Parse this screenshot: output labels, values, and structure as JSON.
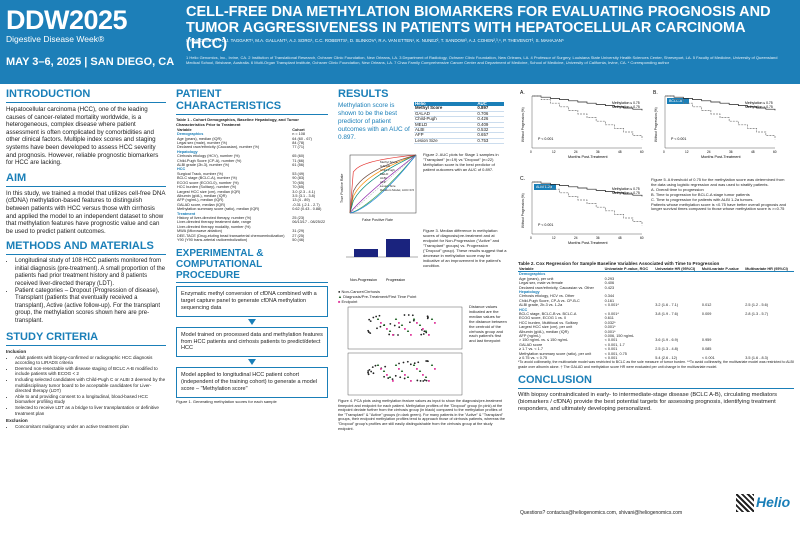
{
  "header": {
    "logo_main": "DDW2025",
    "logo_sub": "Digestive Disease Week®",
    "conference": "MAY 3–6, 2025 | SAN DIEGO, CA",
    "title": "CELL-FREE DNA METHYLATION BIOMARKERS FOR EVALUATING PROGNOSIS AND TUMOR AGGRESSIVENESS IN PATIENTS WITH HEPATOCELLULAR CARCINOMA (HCC)",
    "authors": "I. PINKOVEZKY¹, D.J. TAGGART¹, M.A. GALLANT¹, A.J. SORG¹, C.C. ROBERTS¹, D. SLINKOV¹, R.A. VAN ETTEN¹, K. NUNEZ², T. SANDOW³, A.J. COHEN²,³,⁴, P. THEVENOT², S. MAHAJAN⁵",
    "affiliations": "1 Helio Genomics, Inc., Irvine, CA. 2 Institution of Translational Research, Ochsner Clinic Foundation, New Orleans, LA. 3 Department of Radiology, Ochsner Clinic Foundation, New Orleans, LA. 4 Professor of Surgery, Louisiana State University Health Sciences Center, Shreveport, LA. 5 Faculty of Medicine, University of Queensland Medical School, Brisbane, Australia. 6 Multi-Organ Transplant Institute, Ochsner Clinic Foundation, New Orleans, LA. 7 Chao Family Comprehensive Cancer Center and Department of Medicine, School of Medicine, University of California, Irvine, CA. * Corresponding author"
  },
  "intro": {
    "heading": "INTRODUCTION",
    "text": "Hepatocellular carcinoma (HCC), one of the leading causes of cancer-related mortality worldwide, is a heterogeneous, complex disease where patient assessment is often complicated by comorbidities and other clinical factors. Multiple index scores and staging systems have been developed to assess HCC severity and prognosis. However, reliable prognostic biomarkers for HCC are lacking."
  },
  "aim": {
    "heading": "AIM",
    "text": "In this study, we trained a model that utilizes cell-free DNA (cfDNA) methylation-based features to distinguish between patients with HCC versus those with cirrhosis and applied the model to an independent dataset to show that methylation features have prognostic value and can be used to predict patient outcomes."
  },
  "methods": {
    "heading": "METHODS AND MATERIALS",
    "items": [
      "Longitudinal study of 108 HCC patients monitored from initial diagnosis (pre-treatment). A small proportion of the patients had prior treatment history and 8 patients received liver-directed therapy (LDT).",
      "Patient categories – Dropout (Progression of disease), Transplant (patients that eventually received a transplant), Active (active follow-up). For the transplant group, the methylation scores shown here are pre-transplant."
    ]
  },
  "criteria": {
    "heading": "STUDY CRITERIA",
    "inclusion_label": "Inclusion",
    "inclusion": [
      "Adult patients with biopsy-confirmed or radiographic HCC diagnosis according to LIRADS criteria",
      "Deemed non-resectable with disease staging of BCLC A-B modified to include patients with ECOG < 2",
      "Including selected candidates with Child-Pugh C or ALBI 3 deemed by the multidisciplinary tumor board to be acceptable candidates for Liver-directed therapy (LDT)",
      "Able to and providing consent to a longitudinal, blood-based HCC biomarker profiling study",
      "Selected to receive LDT as a bridge to liver transplantation or definitive treatment plan"
    ],
    "exclusion_label": "Exclusion",
    "exclusion": [
      "Concomitant malignancy under an active treatment plan"
    ]
  },
  "characteristics": {
    "heading": "PATIENT CHARACTERISTICS",
    "table_title": "Table 1 - Cohort Demographics, Baseline Hepatology, and Tumor Characteristics Prior to Treatment",
    "col_variable": "Variable",
    "col_cohort": "Cohort",
    "rows": [
      {
        "s": "Demographics",
        "v": "n = 108"
      },
      {
        "k": "Age (years), median (IQR)",
        "v": "64 (60 - 67)"
      },
      {
        "k": "Legal sex (male), number (%)",
        "v": "84 (78)"
      },
      {
        "k": "Declared race/ethnicity (Caucasian), number (%)",
        "v": "77 (71)"
      },
      {
        "s": "Hepatology",
        "v": ""
      },
      {
        "k": "Cirrhosis etiology (HCV), number (%)",
        "v": "65 (60)"
      },
      {
        "k": "Child-Pugh Score (CP-A), number (%)",
        "v": "71 (66)"
      },
      {
        "k": "ALBI grade (2b-3), number (%)",
        "v": "61 (56)"
      },
      {
        "s": "HCC",
        "v": ""
      },
      {
        "k": "Surgical Track, number (%)",
        "v": "53 (49)"
      },
      {
        "k": "BCLC stage (BCLC-A), number (%)",
        "v": "90 (83)"
      },
      {
        "k": "ECOG score (ECOG-0), number (%)",
        "v": "70 (65)"
      },
      {
        "k": "HCC burden (Solitary), number (%)",
        "v": "70 (65)"
      },
      {
        "k": "Largest HCC size (cm), median (IQR)",
        "v": "3.0 (2.3 - 4.1)"
      },
      {
        "k": "Albumin (g/dL), median (IQR)",
        "v": "3.5 (3.1 - 3.8)"
      },
      {
        "k": "AFP (ng/mL), median (IQR)",
        "v": "13 (4 - 89)"
      },
      {
        "k": "GALAD score, median (IQR)",
        "v": "-0.31 (-2.1 - 2.7)"
      },
      {
        "k": "Methylation summary score (ratio), median (IQR)",
        "v": "0.62 (0.43 - 0.88)"
      },
      {
        "s": "Treatment",
        "v": ""
      },
      {
        "k": "History of liver-directed therapy, number (%)",
        "v": "25 (23)"
      },
      {
        "k": "Liver-directed therapy treatment date, range",
        "v": "06/13/17 - 08/25/22"
      },
      {
        "k": "Liver-directed therapy modality, number (%)",
        "v": ""
      },
      {
        "k": "MWA (Microwave ablation)",
        "v": "31 (29)"
      },
      {
        "k": "DEE-TACE (Drug-eluting bead transarterial chemoembolization)",
        "v": "27 (25)"
      },
      {
        "k": "Y90 (Y90 trans-arterial radioembolization)",
        "v": "50 (46)"
      }
    ]
  },
  "procedure": {
    "heading": "EXPERIMENTAL & COMPUTATIONAL PROCEDURE",
    "step1": "Enzymatic methyl conversion of cfDNA combined with a target capture panel to generate cfDNA methylation sequencing data",
    "step2": "Model trained on processed data and methylation features from HCC patients and cirrhosis patients to predict/detect HCC",
    "step3": "Model applied to longitudinal HCC patient cohort (independent of the training cohort) to generate a model score – \"Methylation score\"",
    "caption": "Figure 1. Generating methylation scores for each sample"
  },
  "results": {
    "heading": "RESULTS",
    "highlight": "Methylation score is shown to be the best predictor of patient outcomes with an AUC of 0.897.",
    "auc_headers": [
      "Helio",
      "AUC"
    ],
    "auc_rows": [
      [
        "Methyl Score",
        "0.897"
      ],
      [
        "GALAD",
        "0.706"
      ],
      [
        "Child-Pugh",
        "0.426"
      ],
      [
        "MELD",
        "0.409"
      ],
      [
        "ALBI",
        "0.532"
      ],
      [
        "AFP",
        "0.657"
      ],
      [
        "Lesion Size",
        "0.753"
      ]
    ],
    "fig2": "Figure 2. AUC plots for Stage 1 samples in \"Transplant\" (n=19) vs \"Dropout\" (n=22) Methylation score is the best predictor of patient outcomes with an AUC of 0.897.",
    "fig3": "Figure 3. Median difference in methylation scores of diagnosis/pre-treatment and at endpoint for Non-Progression (\"Active\" and \"Transplant\" groups) vs. Progression (\"Dropout\" group). These results suggest that a decrease in methylation score may be indicative of an improvement in the patient's condition.",
    "fig4": "Figure 4. PCA plots using methylation feature values as input to show the diagnosis/pre-treatment timepoint and endpoint for each patient. Methylation profiles of the \"Dropout\" group (in pink) at the endpoint deviate further from the cirrhosis group (in black) compared to the methylation profiles of the \"Transplant\" & \"Active\" groups (in dark green). For many patients in the \"Active\" & \"Transplant\" groups, their endpoint methylation profiles tend to approach those of cirrhosis patients, whereas the \"Dropout\" group's profiles are still easily distinguishable from the cirrhosis group at the study endpoint.",
    "pca_note": "Distance values indicated are the median values for the distance between the centroid of the cirrhosis group and each patient's first and last timepoint",
    "legend_non": "Non-Cancer/Cirrhosis",
    "legend_diag": "Diagnosis/Pre-Treatment/First Time Point",
    "legend_end": "Endpoint",
    "roc_legend": [
      "Methyl Score",
      "GALAD",
      "Child-Pugh",
      "MELD",
      "ALBI",
      "AFP",
      "Lesion Size",
      "Random Model, AUC=0.5"
    ],
    "roc_x": "False Positive Rate",
    "roc_y": "True Positive Rate",
    "bar_x1": "Non-Progression",
    "bar_x2": "Progression"
  },
  "km": {
    "label_a": "A.",
    "label_b": "B.",
    "label_c": "C.",
    "bclc": "BCLC-A",
    "albi": "ALBI 1-2a",
    "leg1": "Methylation ≤ 0.75",
    "leg2": "Methylation > 0.75",
    "xlabel": "Months Post-Treatment",
    "ylabel": "Without Progression (%)",
    "pval": "P < 0.001",
    "fig5": "Figure 5. A threshold of 0.75 for the methylation score was determined from the data using logistic regression and was used to stratify patients.",
    "fig5a": "A. Overall time to progression",
    "fig5b": "B. Time to progression for BCLC-A stage tumor patients",
    "fig5c": "C. Time to progression for patients with ALBI 1-2a tumors.",
    "fig5d": "Patients whose methylation score is <0.75 have better overall prognosis and longer survival times compared to those whose methylation score is >=0.75",
    "ticks": [
      "0",
      "12",
      "24",
      "36",
      "48",
      "60"
    ]
  },
  "cox": {
    "title": "Table 2. Cox Regression for Sample Baseline Variables Associated with Time to Progression",
    "headers": [
      "Variable",
      "Univariate P-value, ROC",
      "Univariate HR (95%CI)",
      "Multi-variate P-value",
      "Multivariate HR (95%CI)"
    ],
    "rows": [
      {
        "s": "Demographics"
      },
      {
        "c": [
          "Age (years), per unit",
          "0.293",
          "",
          "",
          ""
        ]
      },
      {
        "c": [
          "Legal sex, male vs female",
          "0.406",
          "",
          "",
          ""
        ]
      },
      {
        "c": [
          "Declared race/ethnicity, Caucasian vs. Other",
          "0.423",
          "",
          "",
          ""
        ]
      },
      {
        "s": "Hepatology"
      },
      {
        "c": [
          "Cirrhosis etiology, HCV vs. Other",
          "0.344",
          "",
          "",
          ""
        ]
      },
      {
        "c": [
          "Child-Pugh Score, CP-A vs. CP-B-C",
          "0.161",
          "",
          "",
          ""
        ]
      },
      {
        "c": [
          "ALBI grade, 2b-3 vs. 1-2a",
          "< 0.001*",
          "3.2 (1.6 - 7.1)",
          "0.012",
          "2.5 (1.2 - 5.6)"
        ]
      },
      {
        "s": "HCC"
      },
      {
        "c": [
          "BCLC stage, BCLC-B vs. BCLC-A",
          "< 0.001*",
          "3.8 (1.9 - 7.6)",
          "0.009",
          "2.8 (1.3 - 5.7)"
        ]
      },
      {
        "c": [
          "ECOG score, ECOG 1 vs. 0",
          "0.611",
          "",
          "",
          ""
        ]
      },
      {
        "c": [
          "HCC burden, Multifocal vs. Solitary",
          "0.032*",
          "",
          "",
          ""
        ]
      },
      {
        "c": [
          "Largest HCC size (cm), per unit",
          "0.001*",
          "",
          "",
          ""
        ]
      },
      {
        "c": [
          "Albumin (g/dL), median (IQR)",
          "0.001*",
          "",
          "",
          ""
        ]
      },
      {
        "c": [
          "AFP (ng/mL)",
          "0.006, 150 ng/mL",
          "",
          "",
          ""
        ]
      },
      {
        "c": [
          "> 150 ng/mL vs. ≤ 150 ng/mL",
          "< 0.001",
          "3.6 (1.9 - 6.9)",
          "0.959",
          ""
        ]
      },
      {
        "c": [
          "GALAD score",
          "< 0.001, 1.7",
          "",
          "",
          ""
        ]
      },
      {
        "c": [
          "≥ 1.7 vs. < 1.7",
          "< 0.001",
          "2.5 (1.3 - 4.8)",
          "0.085",
          ""
        ]
      },
      {
        "c": [
          "Methylation summary score (ratio), per unit",
          "< 0.001, 0.75",
          "",
          "",
          ""
        ]
      },
      {
        "c": [
          "≥ 0.75 vs. < 0.75",
          "< 0.001",
          "5.4 (2.6 - 12)",
          "< 0.001",
          "3.5 (1.6 - 8.3)"
        ]
      }
    ],
    "note": "*To avoid collinearity, the multivariate model was restricted to BCLC as the sole measure of tumor burden. **To avoid collinearity, the multivariate model was restricted to ALBI grade over albumin alone. † The GALAD and methylation score HR were evaluated per unit change in the multivariate model."
  },
  "conclusion": {
    "heading": "CONCLUSION",
    "text": "With biopsy contraindicated in early- to intermediate-stage disease (BCLC A-B), circulating mediators (biomarkers / cfDNA) provide the best potential targets for assessing prognosis, identifying treatment responders, and ultimately developing personalized.",
    "questions": "Questions? contactus@heliogenomics.com, shivani@heliogenomics.com",
    "brand": "Helio"
  },
  "colors": {
    "brand": "#1d7fb8",
    "dropout": "#e040a0",
    "active": "#1b5e20"
  }
}
